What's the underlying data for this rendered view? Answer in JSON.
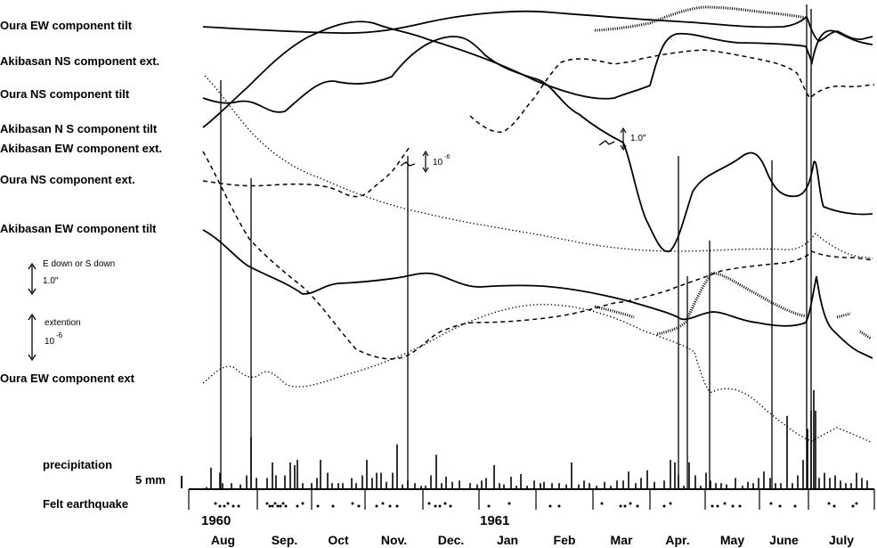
{
  "chart_data": {
    "type": "line",
    "title": "",
    "series_labels": [
      "Oura EW component tilt",
      "Akibasan NS component ext.",
      "Oura NS component tilt",
      "Akibasan N S component tilt",
      "Akibasan EW component ext.",
      "Oura NS component ext.",
      "Akibasan EW component tilt",
      "Oura EW component ext"
    ],
    "months": [
      "Aug",
      "Sep.",
      "Oct",
      "Nov.",
      "Dec.",
      "Jan",
      "Feb",
      "Mar",
      "Apr.",
      "May",
      "June",
      "July"
    ],
    "years": [
      "1960",
      "1961"
    ],
    "scale_labels": {
      "tilt_legend": "E down  or  S down",
      "tilt_value": "1.0″",
      "ext_legend": "extention",
      "ext_value": "10",
      "ext_exp": "-6",
      "inline_ext_value": "10",
      "inline_ext_exp": "-6",
      "inline_tilt_value": "1.0″"
    },
    "precipitation": {
      "label": "precipitation",
      "scale_label": "5 mm",
      "x": [
        232,
        237,
        247,
        250,
        260,
        270,
        277,
        282,
        288,
        300,
        306,
        310,
        320,
        326,
        331,
        334,
        340,
        350,
        356,
        360,
        368,
        373,
        380,
        385,
        395,
        400,
        407,
        412,
        418,
        423,
        428,
        434,
        441,
        446,
        452,
        458,
        466,
        473,
        478,
        484,
        490,
        496,
        501,
        508,
        516,
        528,
        536,
        541,
        546,
        555,
        561,
        566,
        574,
        580,
        585,
        592,
        600,
        607,
        611,
        620,
        628,
        636,
        642,
        650,
        656,
        662,
        670,
        679,
        686,
        693,
        700,
        706,
        714,
        720,
        727,
        735,
        746,
        753,
        758,
        762,
        768,
        774,
        781,
        787,
        793,
        798,
        804,
        810,
        816,
        826,
        834,
        840,
        846,
        852,
        858,
        865,
        871,
        877,
        884,
        890,
        896,
        902,
        907,
        911,
        914,
        916,
        920,
        926,
        932,
        938,
        944,
        950,
        956,
        962,
        968,
        974
      ],
      "values": [
        0.5,
        8,
        6,
        2,
        2,
        1.5,
        5,
        20,
        4,
        4,
        10,
        5,
        5,
        10,
        9,
        11,
        2,
        2,
        4,
        11,
        6,
        2,
        2,
        2,
        4,
        2,
        5,
        11,
        4,
        6,
        6,
        2.5,
        6,
        17,
        1.5,
        3,
        2,
        1,
        1,
        5,
        13,
        2,
        4.5,
        2.5,
        3,
        2,
        1.5,
        3,
        4,
        9,
        2,
        1.5,
        4.5,
        1,
        5.5,
        1,
        3,
        2,
        2.5,
        2,
        2,
        1.5,
        10,
        1.5,
        3,
        2,
        1,
        2.5,
        1,
        3,
        3,
        6.5,
        2,
        4,
        7,
        2.5,
        3,
        11,
        10,
        5,
        1,
        10,
        5,
        1,
        6,
        3,
        2,
        2,
        1.5,
        4,
        1,
        2.5,
        2,
        4,
        6.5,
        4,
        2,
        2,
        28,
        2,
        5,
        11,
        23,
        30,
        38,
        30,
        4,
        6,
        4,
        5,
        3,
        2,
        2,
        6,
        4,
        3
      ]
    },
    "earthquake_label": "Felt earthquake",
    "ylabel": "",
    "xlabel": ""
  }
}
